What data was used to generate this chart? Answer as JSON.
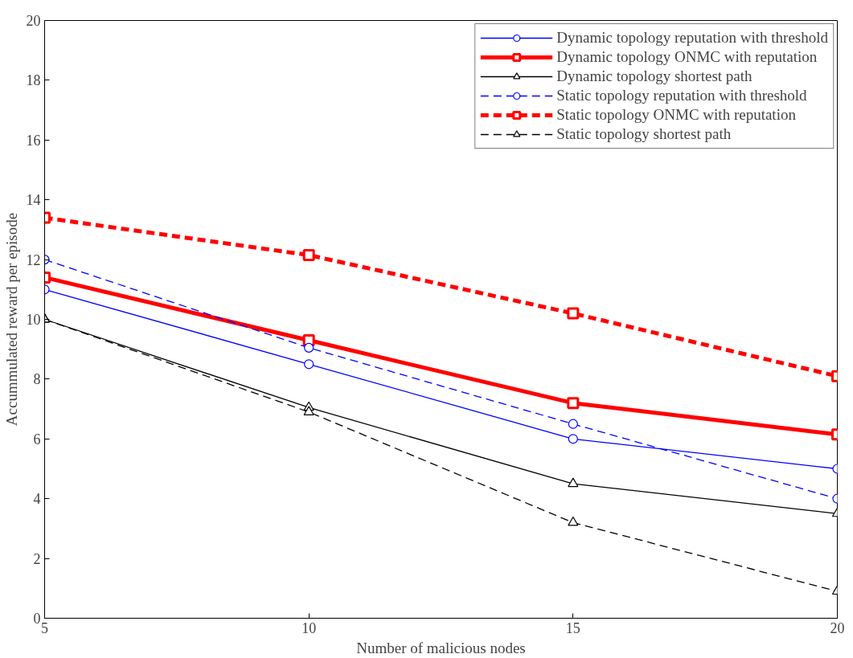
{
  "chart_data": {
    "type": "line",
    "xlabel": "Number of malicious nodes",
    "ylabel": "Accummulated reward per episode",
    "x": [
      5,
      10,
      15,
      20
    ],
    "xlim": [
      5,
      20
    ],
    "xticks": [
      5,
      10,
      15,
      20
    ],
    "ylim": [
      0,
      20
    ],
    "yticks": [
      0,
      2,
      4,
      6,
      8,
      10,
      12,
      14,
      16,
      18,
      20
    ],
    "grid": false,
    "legend": "top right",
    "series": [
      {
        "name": "Dynamic topology reputation with threshold",
        "color": "#0000ff",
        "marker": "circle",
        "line_style": "solid",
        "values": [
          11.0,
          8.5,
          6.0,
          5.0
        ]
      },
      {
        "name": "Dynamic topology ONMC with reputation",
        "color": "#ff0000",
        "marker": "square",
        "line_style": "solid",
        "values": [
          11.4,
          9.3,
          7.2,
          6.15
        ]
      },
      {
        "name": "Dynamic topology shortest path",
        "color": "#000000",
        "marker": "triangle",
        "line_style": "solid",
        "values": [
          10.0,
          7.05,
          4.5,
          3.5
        ]
      },
      {
        "name": "Static topology reputation with threshold",
        "color": "#0000ff",
        "marker": "circle",
        "line_style": "dashed",
        "values": [
          12.0,
          9.05,
          6.5,
          4.0
        ]
      },
      {
        "name": "Static topology ONMC with reputation",
        "color": "#ff0000",
        "marker": "square",
        "line_style": "dashed",
        "values": [
          13.4,
          12.15,
          10.2,
          8.1
        ]
      },
      {
        "name": "Static topology shortest path",
        "color": "#000000",
        "marker": "triangle",
        "line_style": "dashed",
        "values": [
          10.0,
          6.9,
          3.2,
          0.9
        ]
      }
    ]
  }
}
